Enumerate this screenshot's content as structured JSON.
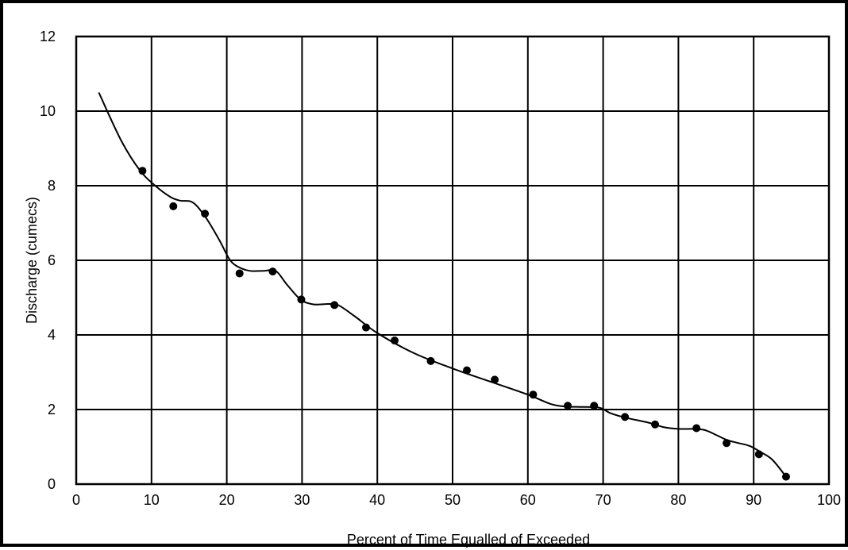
{
  "chart_data": {
    "type": "scatter",
    "title": "",
    "xlabel": "Percent of Time Equalled of Exceeded",
    "ylabel": "Discharge (cumecs)",
    "xlim": [
      0,
      100
    ],
    "ylim": [
      0,
      12
    ],
    "x_ticks": [
      0,
      10,
      20,
      30,
      40,
      50,
      60,
      70,
      80,
      90,
      100
    ],
    "y_ticks": [
      0,
      2,
      4,
      6,
      8,
      10,
      12
    ],
    "grid": true,
    "legend": "none",
    "colors": {
      "marker": "#000000",
      "line": "#000000",
      "grid": "#000000",
      "background": "#ffffff"
    },
    "points": {
      "x": [
        8.8,
        12.9,
        17.1,
        21.7,
        26.1,
        29.9,
        34.3,
        38.5,
        42.3,
        47.1,
        51.9,
        55.6,
        60.7,
        65.3,
        68.8,
        72.9,
        76.9,
        82.4,
        86.4,
        90.7,
        94.3
      ],
      "y": [
        8.4,
        7.45,
        7.25,
        5.65,
        5.7,
        4.95,
        4.8,
        4.2,
        3.85,
        3.3,
        3.05,
        2.8,
        2.4,
        2.1,
        2.1,
        1.8,
        1.6,
        1.5,
        1.1,
        0.8,
        0.2
      ]
    },
    "curve": {
      "x": [
        3.0,
        6.0,
        8.5,
        10.5,
        12.5,
        13.8,
        15.5,
        17.2,
        19.0,
        20.3,
        21.3,
        23.0,
        25.0,
        26.5,
        28.0,
        29.8,
        31.5,
        33.5,
        34.8,
        37.0,
        40.0,
        45.0,
        50.0,
        55.0,
        60.0,
        63.0,
        65.0,
        67.0,
        69.5,
        71.0,
        73.0,
        76.0,
        78.0,
        80.0,
        82.0,
        83.5,
        85.0,
        86.5,
        88.0,
        89.5,
        91.0,
        92.5,
        94.3
      ],
      "y": [
        10.5,
        9.2,
        8.4,
        8.0,
        7.7,
        7.6,
        7.55,
        7.15,
        6.55,
        6.05,
        5.85,
        5.72,
        5.72,
        5.72,
        5.35,
        4.95,
        4.82,
        4.83,
        4.8,
        4.5,
        4.05,
        3.5,
        3.1,
        2.75,
        2.4,
        2.15,
        2.08,
        2.07,
        2.05,
        1.9,
        1.78,
        1.65,
        1.53,
        1.48,
        1.48,
        1.45,
        1.32,
        1.18,
        1.1,
        1.02,
        0.85,
        0.65,
        0.2
      ]
    }
  }
}
